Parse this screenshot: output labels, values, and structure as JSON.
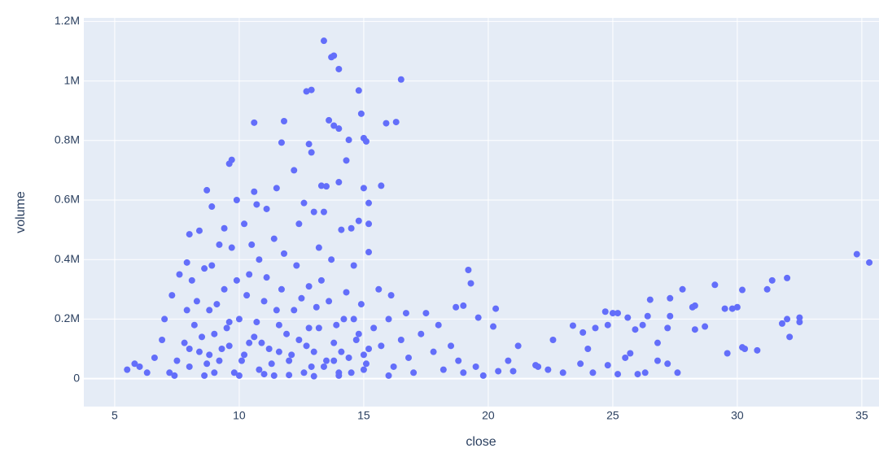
{
  "chart_data": {
    "type": "scatter",
    "x_label": "close",
    "y_label": "volume",
    "color": "#636efa",
    "grid": true,
    "xlim": [
      3.76,
      35.69
    ],
    "ylim": [
      -94000,
      1212000
    ],
    "xticks": [
      5,
      10,
      15,
      20,
      25,
      30,
      35
    ],
    "yticks": [
      0,
      {
        "value": 200000,
        "label": "0.2M"
      },
      {
        "value": 400000,
        "label": "0.4M"
      },
      {
        "value": 600000,
        "label": "0.6M"
      },
      {
        "value": 800000,
        "label": "0.8M"
      },
      {
        "value": 1000000,
        "label": "1M"
      },
      {
        "value": 1200000,
        "label": "1.2M"
      }
    ],
    "x": [
      13.4,
      13.8,
      13.7,
      14.0,
      16.5,
      12.9,
      12.7,
      14.8,
      14.9,
      10.6,
      11.8,
      13.6,
      13.8,
      14.0,
      15.9,
      16.3,
      15.0,
      15.1,
      12.8,
      11.7,
      12.9,
      14.4,
      9.7,
      9.6,
      14.3,
      12.2,
      8.7,
      9.9,
      10.6,
      11.5,
      13.3,
      13.5,
      14.0,
      15.7,
      15.0,
      15.2,
      8.9,
      10.7,
      11.1,
      12.6,
      13.4,
      14.8,
      15.2,
      9.4,
      8.0,
      8.4,
      13.0,
      14.5,
      15.2,
      34.8,
      35.3,
      32.0,
      31.4,
      31.2,
      30.2,
      29.1,
      28.3,
      28.2,
      27.8,
      27.3,
      26.5,
      25.6,
      25.2,
      25.0,
      24.7,
      24.8,
      24.3,
      23.8,
      23.4,
      22.6,
      22.0,
      21.2,
      20.8,
      20.4,
      20.2,
      20.3,
      19.6,
      19.2,
      19.3,
      19.0,
      18.7,
      30.0,
      29.8,
      29.5,
      29.6,
      30.2,
      30.3,
      30.8,
      31.8,
      32.0,
      32.1,
      32.5,
      32.5,
      28.7,
      28.3,
      27.6,
      27.3,
      27.2,
      26.8,
      26.8,
      26.3,
      26.0,
      25.7,
      25.5,
      25.2,
      24.8,
      24.2,
      24.0,
      23.7,
      23.0,
      22.4,
      21.9,
      21.0,
      26.4,
      26.2,
      25.9,
      27.2,
      7.2,
      7.5,
      7.8,
      8.0,
      8.2,
      8.4,
      8.6,
      8.8,
      9.0,
      9.2,
      9.4,
      9.6,
      9.8,
      10.0,
      10.2,
      10.4,
      10.6,
      10.8,
      11.0,
      11.2,
      11.4,
      11.6,
      11.8,
      12.0,
      12.2,
      12.4,
      12.6,
      12.8,
      13.0,
      13.2,
      13.4,
      13.6,
      13.8,
      14.0,
      14.2,
      14.4,
      14.6,
      14.8,
      15.0,
      15.2,
      6.0,
      6.3,
      6.6,
      6.9,
      7.0,
      7.3,
      7.6,
      7.9,
      8.1,
      8.3,
      8.5,
      8.7,
      8.9,
      9.1,
      9.3,
      9.5,
      9.7,
      9.9,
      10.1,
      10.3,
      10.5,
      10.7,
      10.9,
      11.1,
      11.3,
      11.5,
      11.7,
      11.9,
      12.1,
      12.3,
      12.5,
      12.7,
      12.9,
      13.1,
      13.3,
      13.5,
      13.7,
      13.9,
      14.1,
      14.3,
      14.5,
      14.7,
      14.9,
      15.1,
      15.4,
      15.7,
      16.0,
      16.2,
      16.5,
      16.8,
      17.0,
      17.3,
      17.5,
      17.8,
      18.0,
      18.2,
      18.5,
      18.8,
      19.0,
      19.5,
      19.8,
      5.5,
      5.8,
      7.4,
      8.0,
      9.0,
      10.0,
      11.0,
      12.0,
      13.0,
      14.0,
      15.0,
      16.0,
      10.8,
      9.2,
      8.6,
      12.4,
      11.4,
      10.2,
      13.2,
      14.1,
      7.9,
      8.8,
      9.6,
      10.4,
      11.6,
      12.8,
      13.8,
      14.6,
      15.6,
      16.1,
      16.7
    ],
    "values": [
      1135000,
      1085000,
      1080000,
      1040000,
      1005000,
      970000,
      965000,
      968000,
      890000,
      860000,
      865000,
      868000,
      850000,
      840000,
      858000,
      862000,
      808000,
      797000,
      788000,
      793000,
      760000,
      802000,
      735000,
      722000,
      733000,
      700000,
      633000,
      600000,
      628000,
      640000,
      648000,
      646000,
      660000,
      648000,
      640000,
      590000,
      578000,
      585000,
      570000,
      590000,
      560000,
      530000,
      520000,
      505000,
      485000,
      497000,
      560000,
      505000,
      425000,
      418000,
      390000,
      338000,
      330000,
      300000,
      298000,
      315000,
      245000,
      240000,
      300000,
      270000,
      265000,
      205000,
      220000,
      220000,
      225000,
      180000,
      170000,
      155000,
      178000,
      130000,
      40000,
      110000,
      60000,
      25000,
      175000,
      235000,
      205000,
      365000,
      320000,
      245000,
      240000,
      240000,
      235000,
      235000,
      85000,
      105000,
      100000,
      95000,
      185000,
      200000,
      140000,
      190000,
      205000,
      175000,
      165000,
      20000,
      210000,
      170000,
      120000,
      60000,
      20000,
      15000,
      85000,
      70000,
      15000,
      45000,
      20000,
      100000,
      50000,
      20000,
      30000,
      45000,
      25000,
      210000,
      180000,
      165000,
      50000,
      20000,
      60000,
      120000,
      40000,
      180000,
      90000,
      10000,
      230000,
      150000,
      60000,
      300000,
      110000,
      20000,
      200000,
      80000,
      350000,
      140000,
      30000,
      260000,
      100000,
      10000,
      180000,
      420000,
      60000,
      230000,
      130000,
      20000,
      310000,
      90000,
      170000,
      40000,
      260000,
      120000,
      10000,
      200000,
      70000,
      380000,
      150000,
      30000,
      100000,
      40000,
      20000,
      70000,
      130000,
      200000,
      280000,
      350000,
      390000,
      330000,
      260000,
      140000,
      50000,
      380000,
      250000,
      100000,
      170000,
      440000,
      330000,
      60000,
      280000,
      450000,
      190000,
      120000,
      340000,
      50000,
      230000,
      300000,
      150000,
      80000,
      380000,
      270000,
      110000,
      40000,
      240000,
      330000,
      60000,
      400000,
      180000,
      90000,
      290000,
      20000,
      130000,
      250000,
      50000,
      170000,
      110000,
      200000,
      40000,
      130000,
      70000,
      20000,
      150000,
      220000,
      90000,
      180000,
      30000,
      110000,
      60000,
      20000,
      40000,
      10000,
      30000,
      50000,
      10000,
      100000,
      20000,
      10000,
      15000,
      12000,
      8000,
      20000,
      80000,
      10000,
      400000,
      450000,
      370000,
      520000,
      470000,
      520000,
      440000,
      500000,
      230000,
      80000,
      190000,
      120000,
      90000,
      170000,
      60000,
      200000,
      300000,
      280000,
      220000
    ]
  }
}
